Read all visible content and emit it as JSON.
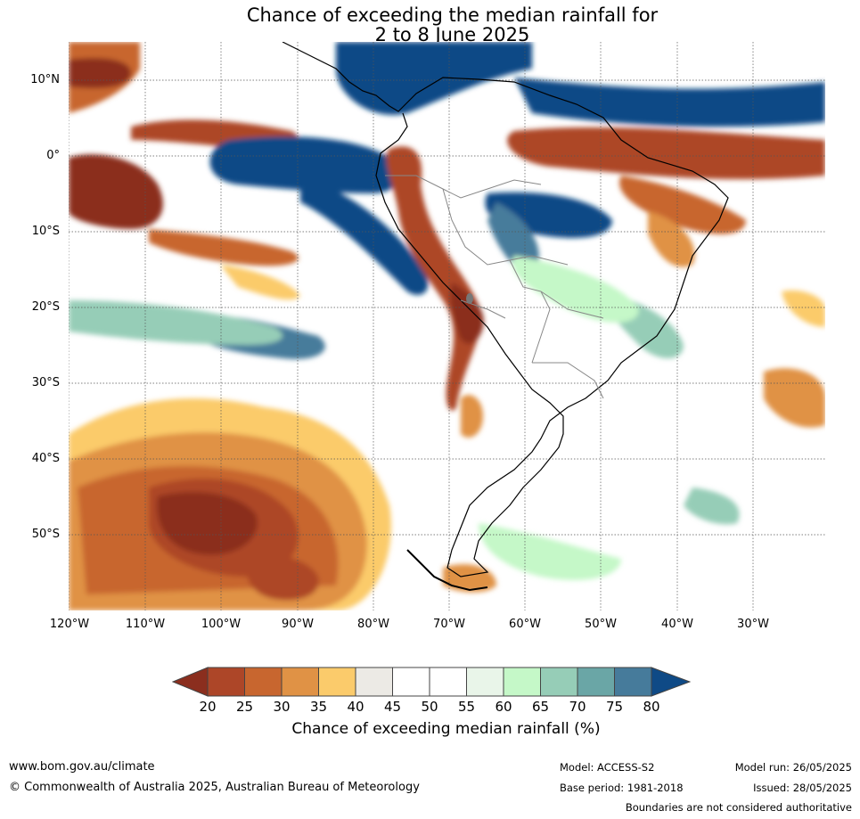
{
  "title": {
    "line1": "Chance of exceeding the median rainfall for",
    "line2": "2 to 8 June 2025"
  },
  "map": {
    "region": "South America",
    "lat_labels": [
      "10°N",
      "0°",
      "10°S",
      "20°S",
      "30°S",
      "40°S",
      "50°S"
    ],
    "lon_labels": [
      "120°W",
      "110°W",
      "100°W",
      "90°W",
      "80°W",
      "70°W",
      "60°W",
      "50°W",
      "40°W",
      "30°W"
    ]
  },
  "colorbar": {
    "ticks": [
      "20",
      "25",
      "30",
      "35",
      "40",
      "45",
      "50",
      "55",
      "60",
      "65",
      "70",
      "75",
      "80"
    ],
    "label": "Chance of exceeding median rainfall (%)",
    "colors": {
      "under20": "#8b2e1e",
      "c20_25": "#ad4628",
      "c25_30": "#c8662f",
      "c30_35": "#e09245",
      "c35_40": "#fbcb6b",
      "c40_45": "#eceae5",
      "c45_50": "#ffffff",
      "c50_55": "#ffffff",
      "c55_60": "#e9f5e9",
      "c60_65": "#c5f8c8",
      "c65_70": "#96cdb7",
      "c70_75": "#6aa6a6",
      "c75_80": "#467b9b",
      "over80": "#0f4a86"
    }
  },
  "footer": {
    "site": "www.bom.gov.au/climate",
    "copyright": "© Commonwealth of Australia 2025, Australian Bureau of Meteorology",
    "model": "Model: ACCESS-S2",
    "base_period": "Base period: 1981-2018",
    "model_run": "Model run: 26/05/2025",
    "issued": "Issued: 28/05/2025",
    "boundaries_note": "Boundaries are not considered authoritative"
  }
}
